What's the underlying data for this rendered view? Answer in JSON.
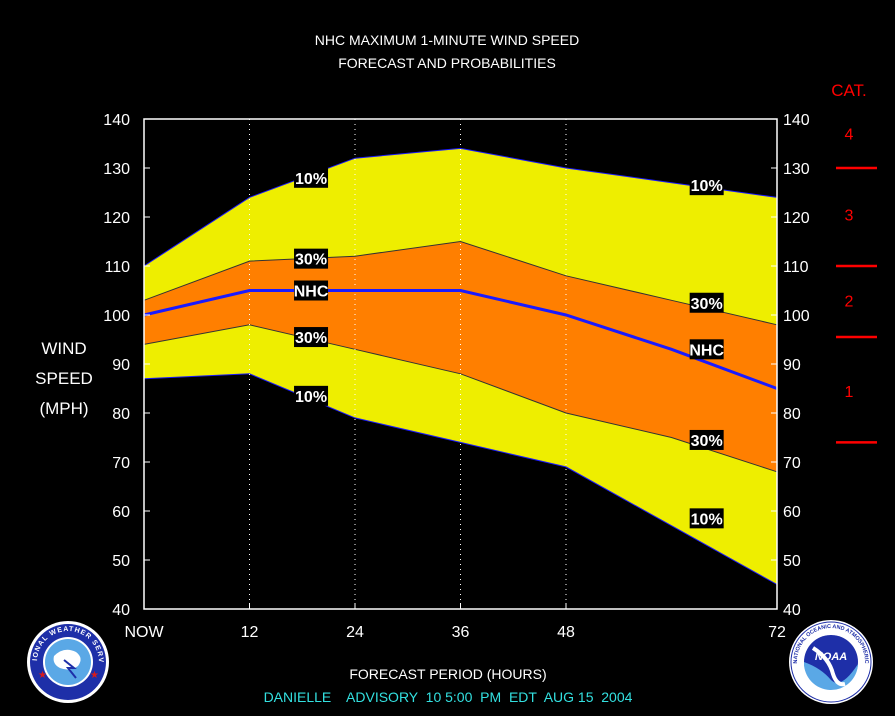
{
  "chart_data": {
    "type": "area",
    "title_line1": "NHC MAXIMUM 1-MINUTE WIND SPEED",
    "title_line2": "FORECAST AND PROBABILITIES",
    "ylabel": [
      "WIND",
      "SPEED",
      "(MPH)"
    ],
    "xlabel": "FORECAST PERIOD (HOURS)",
    "advisory": "DANIELLE    ADVISORY  10 5:00  PM  EDT  AUG 15  2004",
    "x_ticks": [
      {
        "x": 0,
        "label": "NOW"
      },
      {
        "x": 12,
        "label": "12"
      },
      {
        "x": 24,
        "label": "24"
      },
      {
        "x": 36,
        "label": "36"
      },
      {
        "x": 48,
        "label": "48"
      },
      {
        "x": 72,
        "label": "72"
      }
    ],
    "ylim": [
      40,
      140
    ],
    "xlim": [
      0,
      72
    ],
    "y_ticks": [
      40,
      50,
      60,
      70,
      80,
      90,
      100,
      110,
      120,
      130,
      140
    ],
    "x_gridlines": [
      12,
      24,
      36,
      48
    ],
    "upper10": [
      [
        0,
        110
      ],
      [
        12,
        124
      ],
      [
        24,
        132
      ],
      [
        36,
        134
      ],
      [
        48,
        130
      ],
      [
        60,
        127
      ],
      [
        72,
        124
      ]
    ],
    "upper30": [
      [
        0,
        103
      ],
      [
        12,
        111
      ],
      [
        24,
        112
      ],
      [
        36,
        115
      ],
      [
        48,
        108
      ],
      [
        60,
        103
      ],
      [
        72,
        98
      ]
    ],
    "nhc": [
      [
        0,
        100
      ],
      [
        12,
        105
      ],
      [
        24,
        105
      ],
      [
        36,
        105
      ],
      [
        48,
        100
      ],
      [
        60,
        93
      ],
      [
        72,
        85
      ]
    ],
    "lower30": [
      [
        0,
        94
      ],
      [
        12,
        98
      ],
      [
        24,
        93
      ],
      [
        36,
        88
      ],
      [
        48,
        80
      ],
      [
        60,
        75
      ],
      [
        72,
        68
      ]
    ],
    "lower10": [
      [
        0,
        87
      ],
      [
        12,
        88
      ],
      [
        24,
        79
      ],
      [
        36,
        74
      ],
      [
        48,
        69
      ],
      [
        60,
        57
      ],
      [
        72,
        45
      ]
    ],
    "band_labels": [
      {
        "text": "10%",
        "x": 19,
        "y": 128
      },
      {
        "text": "30%",
        "x": 19,
        "y": 111.5
      },
      {
        "text": "NHC",
        "x": 19,
        "y": 105
      },
      {
        "text": "30%",
        "x": 19,
        "y": 95.5
      },
      {
        "text": "10%",
        "x": 19,
        "y": 83.5
      },
      {
        "text": "10%",
        "x": 64,
        "y": 126.5
      },
      {
        "text": "30%",
        "x": 64,
        "y": 102.5
      },
      {
        "text": "NHC",
        "x": 64,
        "y": 93
      },
      {
        "text": "30%",
        "x": 64,
        "y": 74.5
      },
      {
        "text": "10%",
        "x": 64,
        "y": 58.5
      }
    ],
    "category": {
      "header": "CAT.",
      "labels": [
        {
          "text": "4",
          "y": 137
        },
        {
          "text": "3",
          "y": 120.5
        },
        {
          "text": "2",
          "y": 103
        },
        {
          "text": "1",
          "y": 84.5
        }
      ],
      "boundaries": [
        130,
        110,
        95.5,
        74
      ]
    },
    "colors": {
      "background": "#000000",
      "outer_band": "#eeee00",
      "inner_band": "#ff7f00",
      "nhc_line": "#1a1aff",
      "text": "#ffffff",
      "category": "#ff0000",
      "advisory": "#33e0e0"
    },
    "grid": "dotted vertical"
  }
}
